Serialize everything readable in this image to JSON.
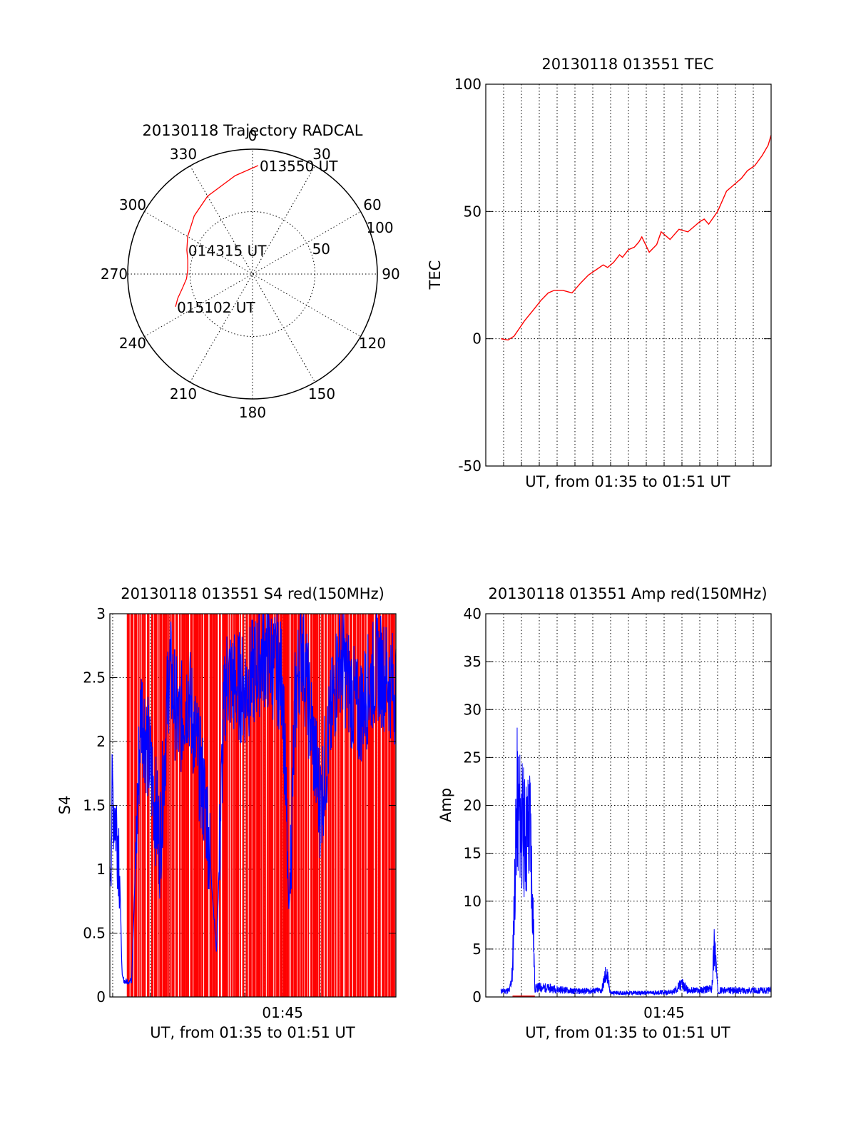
{
  "colors": {
    "red": "#ff0000",
    "blue": "#0000ff",
    "axis": "#000000",
    "background": "#ffffff"
  },
  "chart_data": [
    {
      "id": "trajectory",
      "type": "polar",
      "title": "20130118 Trajectory RADCAL",
      "angle_ticks": [
        "0",
        "30",
        "60",
        "90",
        "120",
        "150",
        "180",
        "210",
        "240",
        "270",
        "300",
        "330"
      ],
      "radial_ticks": [
        "50",
        "100"
      ],
      "rlim": [
        0,
        100
      ],
      "grid": true,
      "series": [
        {
          "color": "#ff0000",
          "azimuth": [
            3,
            350,
            330,
            315,
            300,
            290,
            282,
            274,
            266,
            259,
            252,
            247
          ],
          "radius": [
            87,
            80,
            72,
            66,
            60,
            56,
            53,
            52,
            53,
            57,
            63,
            67
          ]
        }
      ],
      "annotations": [
        {
          "text": "013550 UT",
          "azimuth": 3,
          "radius": 87
        },
        {
          "text": "014315 UT",
          "azimuth": 290,
          "radius": 56
        },
        {
          "text": "015102 UT",
          "azimuth": 247,
          "radius": 67
        }
      ]
    },
    {
      "id": "tec",
      "type": "line",
      "title": "20130118 013551 TEC",
      "xlabel": "UT, from 01:35 to 01:51 UT",
      "ylabel": "TEC",
      "xlim": [
        "01:35:00",
        "01:51:00"
      ],
      "ylim": [
        -50,
        100
      ],
      "yticks": [
        "-50",
        "0",
        "50",
        "100"
      ],
      "grid": true,
      "series": [
        {
          "color": "#ff0000",
          "x": [
            "01:35:51",
            "01:36:15",
            "01:36:35",
            "01:37:10",
            "01:37:45",
            "01:38:05",
            "01:38:30",
            "01:38:50",
            "01:39:20",
            "01:39:50",
            "01:40:20",
            "01:40:45",
            "01:41:10",
            "01:41:35",
            "01:41:50",
            "01:42:10",
            "01:42:30",
            "01:42:40",
            "01:43:00",
            "01:43:20",
            "01:43:35",
            "01:43:45",
            "01:44:10",
            "01:44:35",
            "01:44:50",
            "01:45:20",
            "01:45:50",
            "01:46:20",
            "01:46:40",
            "01:47:00",
            "01:47:15",
            "01:47:30",
            "01:48:00",
            "01:48:30",
            "01:49:00",
            "01:49:20",
            "01:49:40",
            "01:50:05",
            "01:50:30",
            "01:50:50",
            "01:51:00"
          ],
          "y": [
            0,
            -0.5,
            1,
            7,
            12,
            15,
            18,
            19,
            19,
            18,
            22,
            25,
            27,
            29,
            28,
            30,
            33,
            32,
            35,
            36,
            38,
            40,
            34,
            37,
            42,
            39,
            43,
            42,
            44,
            46,
            47,
            45,
            50,
            58,
            61,
            63,
            66,
            68,
            72,
            76,
            80
          ]
        }
      ]
    },
    {
      "id": "s4",
      "type": "line",
      "title": "20130118 013551 S4 red(150MHz)",
      "xlabel": "UT, from 01:35 to 01:51 UT",
      "ylabel": "S4",
      "xlim": [
        "01:35:51",
        "01:51:00"
      ],
      "ylim": [
        0,
        3
      ],
      "xticks": [
        "01:45"
      ],
      "yticks": [
        "0",
        "0.5",
        "1",
        "1.5",
        "2",
        "2.5",
        "3"
      ],
      "grid": true,
      "series": [
        {
          "color": "#ff0000",
          "note_spikes_between": [
            0,
            3
          ],
          "x": [
            "01:35:51",
            "01:37:30",
            "01:40:00",
            "01:42:00",
            "01:44:00",
            "01:46:00",
            "01:48:00",
            "01:50:00",
            "01:51:00"
          ],
          "y": [
            3,
            3,
            3,
            3,
            3,
            3,
            3,
            3,
            3
          ]
        },
        {
          "color": "#0000ff",
          "x": [
            "01:35:51",
            "01:36:00",
            "01:36:20",
            "01:36:30",
            "01:36:40",
            "01:37:00",
            "01:37:30",
            "01:38:00",
            "01:38:30",
            "01:39:00",
            "01:39:30",
            "01:40:00",
            "01:41:00",
            "01:41:30",
            "01:41:50",
            "01:42:00",
            "01:43:00",
            "01:44:00",
            "01:45:00",
            "01:45:20",
            "01:45:40",
            "01:46:00",
            "01:47:00",
            "01:48:00",
            "01:49:00",
            "01:50:00",
            "01:51:00"
          ],
          "y": [
            1.0,
            1.6,
            1.2,
            0.15,
            0.12,
            0.13,
            2.3,
            1.8,
            1.2,
            2.6,
            2.1,
            2.4,
            1.4,
            0.35,
            2.0,
            2.5,
            2.4,
            2.7,
            2.5,
            0.65,
            2.3,
            2.8,
            1.5,
            2.7,
            2.2,
            2.6,
            2.4
          ]
        }
      ]
    },
    {
      "id": "amp",
      "type": "line",
      "title": "20130118 013551 Amp red(150MHz)",
      "xlabel": "UT, from 01:35 to 01:51 UT",
      "ylabel": "Amp",
      "xlim": [
        "01:35:00",
        "01:51:00"
      ],
      "ylim": [
        0,
        40
      ],
      "xticks": [
        "01:45"
      ],
      "yticks": [
        "0",
        "5",
        "10",
        "15",
        "20",
        "25",
        "30",
        "35",
        "40"
      ],
      "grid": true,
      "series": [
        {
          "color": "#0000ff",
          "x": [
            "01:35:51",
            "01:36:20",
            "01:36:30",
            "01:36:35",
            "01:36:45",
            "01:37:00",
            "01:37:15",
            "01:37:30",
            "01:37:45",
            "01:38:00",
            "01:40:00",
            "01:41:30",
            "01:41:45",
            "01:42:00",
            "01:44:00",
            "01:45:30",
            "01:46:00",
            "01:46:20",
            "01:47:00",
            "01:47:40",
            "01:47:50",
            "01:48:00",
            "01:49:00",
            "01:51:00"
          ],
          "y": [
            0.7,
            0.8,
            3,
            12,
            27,
            24,
            22,
            24,
            1,
            1.2,
            0.7,
            0.8,
            3,
            0.5,
            0.5,
            0.6,
            1.6,
            0.8,
            0.8,
            1.0,
            7,
            0.8,
            0.8,
            0.8
          ]
        },
        {
          "color": "#ff0000",
          "x": [
            "01:36:30",
            "01:37:45"
          ],
          "y": [
            0,
            0
          ]
        }
      ]
    }
  ]
}
